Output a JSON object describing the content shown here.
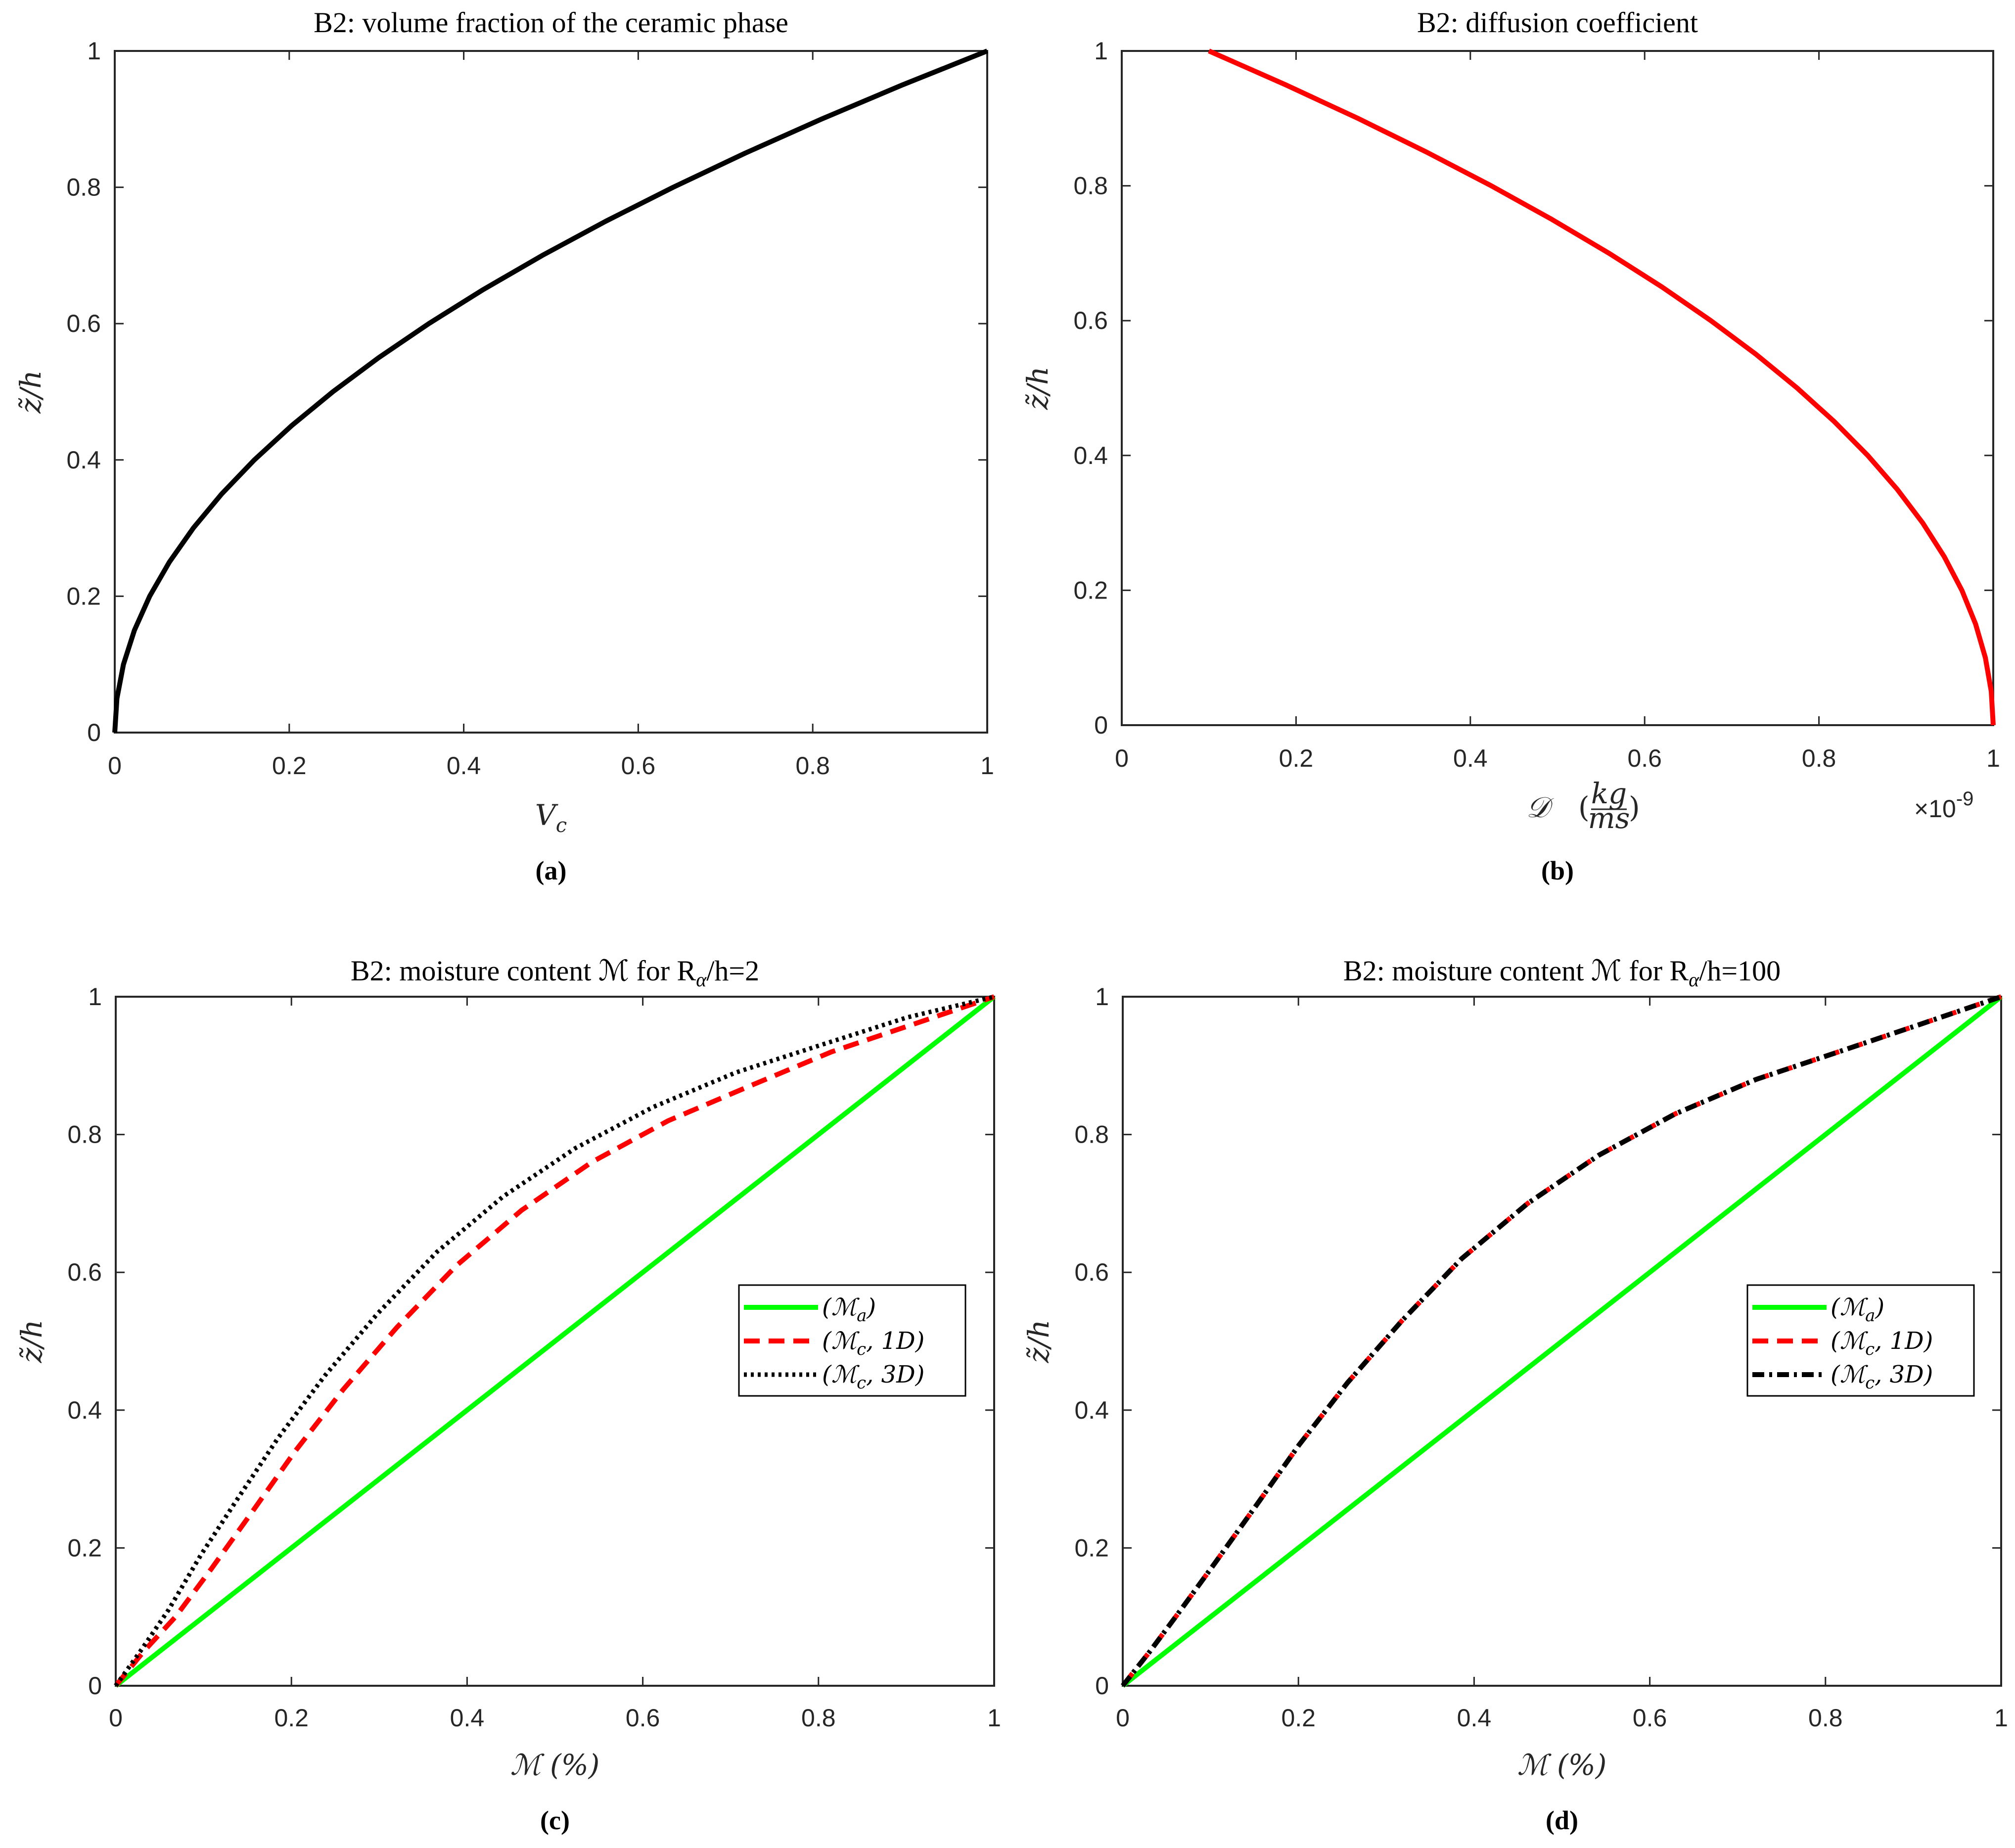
{
  "figure": {
    "colors": {
      "black": "#000000",
      "red": "#ff0000",
      "green": "#00ff00",
      "axis": "#262626"
    },
    "yaxis_label": "z̃/h"
  },
  "chart_data": [
    {
      "id": "a",
      "type": "line",
      "title": "B2:  volume fraction of the ceramic phase",
      "xlabel": "V",
      "xlabel_sub": "c",
      "ylabel": "z̃/h",
      "caption": "(a)",
      "xlim": [
        0,
        1
      ],
      "ylim": [
        0,
        1
      ],
      "xticks": [
        "0",
        "0.2",
        "0.4",
        "0.6",
        "0.8",
        "1"
      ],
      "yticks": [
        "0",
        "0.2",
        "0.4",
        "0.6",
        "0.8",
        "1"
      ],
      "series": [
        {
          "name": "V_c",
          "color": "#000000",
          "style": "solid",
          "x": [
            0,
            0.0025,
            0.01,
            0.0225,
            0.04,
            0.0625,
            0.09,
            0.1225,
            0.16,
            0.2025,
            0.25,
            0.3025,
            0.36,
            0.4225,
            0.49,
            0.5625,
            0.64,
            0.7225,
            0.81,
            0.9025,
            1
          ],
          "y": [
            0,
            0.05,
            0.1,
            0.15,
            0.2,
            0.25,
            0.3,
            0.35,
            0.4,
            0.45,
            0.5,
            0.55,
            0.6,
            0.65,
            0.7,
            0.75,
            0.8,
            0.85,
            0.9,
            0.95,
            1
          ]
        }
      ]
    },
    {
      "id": "b",
      "type": "line",
      "title": "B2:  diffusion coefficient",
      "xlabel": "𝒟",
      "xlabel_frac_num": "kg",
      "xlabel_frac_den": "ms",
      "ylabel": "z̃/h",
      "caption": "(b)",
      "x_exponent": "×10",
      "x_exponent_power": "-9",
      "xlim": [
        0,
        1
      ],
      "ylim": [
        0,
        1
      ],
      "xticks": [
        "0",
        "0.2",
        "0.4",
        "0.6",
        "0.8",
        "1"
      ],
      "yticks": [
        "0",
        "0.2",
        "0.4",
        "0.6",
        "0.8",
        "1"
      ],
      "series": [
        {
          "name": "D",
          "color": "#ff0000",
          "style": "solid",
          "x": [
            1,
            0.99775,
            0.991,
            0.97975,
            0.964,
            0.94375,
            0.919,
            0.88975,
            0.856,
            0.81775,
            0.775,
            0.72775,
            0.676,
            0.61975,
            0.559,
            0.49375,
            0.424,
            0.34975,
            0.271,
            0.18775,
            0.1
          ],
          "y": [
            0,
            0.05,
            0.1,
            0.15,
            0.2,
            0.25,
            0.3,
            0.35,
            0.4,
            0.45,
            0.5,
            0.55,
            0.6,
            0.65,
            0.7,
            0.75,
            0.8,
            0.85,
            0.9,
            0.95,
            1
          ]
        }
      ]
    },
    {
      "id": "c",
      "type": "line",
      "title": "B2:  moisture content ℳ for R",
      "title_sub": "α",
      "title_tail": "/h=2",
      "xlabel": "ℳ (%)",
      "ylabel": "z̃/h",
      "caption": "(c)",
      "xlim": [
        0,
        1
      ],
      "ylim": [
        0,
        1
      ],
      "xticks": [
        "0",
        "0.2",
        "0.4",
        "0.6",
        "0.8",
        "1"
      ],
      "yticks": [
        "0",
        "0.2",
        "0.4",
        "0.6",
        "0.8",
        "1"
      ],
      "legend_position": "center-right",
      "series": [
        {
          "name": "(ℳa)",
          "legend_main": "(ℳ",
          "legend_sub": "a",
          "legend_tail": ")",
          "color": "#00ff00",
          "style": "solid",
          "x": [
            0,
            1
          ],
          "y": [
            0,
            1
          ]
        },
        {
          "name": "(ℳc, 1D)",
          "legend_main": "(ℳ",
          "legend_sub": "c",
          "legend_tail": ", 1D)",
          "color": "#ff0000",
          "style": "dashed",
          "x": [
            0,
            0.032,
            0.068,
            0.109,
            0.154,
            0.204,
            0.259,
            0.32,
            0.388,
            0.462,
            0.542,
            0.629,
            0.721,
            0.815,
            0.908,
            1
          ],
          "y": [
            0,
            0.05,
            0.1,
            0.17,
            0.25,
            0.34,
            0.43,
            0.52,
            0.61,
            0.69,
            0.76,
            0.82,
            0.87,
            0.92,
            0.96,
            1
          ]
        },
        {
          "name": "(ℳc, 3D)",
          "legend_main": "(ℳ",
          "legend_sub": "c",
          "legend_tail": ", 3D)",
          "color": "#000000",
          "style": "dotted",
          "x": [
            0,
            0.028,
            0.06,
            0.097,
            0.138,
            0.185,
            0.238,
            0.298,
            0.366,
            0.441,
            0.523,
            0.612,
            0.706,
            0.803,
            0.901,
            1
          ],
          "y": [
            0,
            0.05,
            0.11,
            0.19,
            0.27,
            0.36,
            0.45,
            0.54,
            0.63,
            0.71,
            0.78,
            0.84,
            0.89,
            0.93,
            0.97,
            1
          ]
        }
      ]
    },
    {
      "id": "d",
      "type": "line",
      "title": "B2:  moisture content ℳ for R",
      "title_sub": "α",
      "title_tail": "/h=100",
      "xlabel": "ℳ (%)",
      "ylabel": "z̃/h",
      "caption": "(d)",
      "xlim": [
        0,
        1
      ],
      "ylim": [
        0,
        1
      ],
      "xticks": [
        "0",
        "0.2",
        "0.4",
        "0.6",
        "0.8",
        "1"
      ],
      "yticks": [
        "0",
        "0.2",
        "0.4",
        "0.6",
        "0.8",
        "1"
      ],
      "legend_position": "center-right",
      "series": [
        {
          "name": "(ℳa)",
          "legend_main": "(ℳ",
          "legend_sub": "a",
          "legend_tail": ")",
          "color": "#00ff00",
          "style": "solid",
          "x": [
            0,
            1
          ],
          "y": [
            0,
            1
          ]
        },
        {
          "name": "(ℳc, 1D)",
          "legend_main": "(ℳ",
          "legend_sub": "c",
          "legend_tail": ", 1D)",
          "color": "#ff0000",
          "style": "dashed",
          "x": [
            0,
            0.031,
            0.066,
            0.106,
            0.151,
            0.201,
            0.256,
            0.318,
            0.386,
            0.461,
            0.542,
            0.629,
            0.721,
            0.815,
            0.908,
            1
          ],
          "y": [
            0,
            0.05,
            0.11,
            0.18,
            0.26,
            0.35,
            0.44,
            0.53,
            0.62,
            0.7,
            0.77,
            0.83,
            0.88,
            0.92,
            0.96,
            1
          ]
        },
        {
          "name": "(ℳc, 3D)",
          "legend_main": "(ℳ",
          "legend_sub": "c",
          "legend_tail": ", 3D)",
          "color": "#000000",
          "style": "dashdot",
          "x": [
            0,
            0.031,
            0.066,
            0.106,
            0.151,
            0.201,
            0.256,
            0.318,
            0.386,
            0.461,
            0.542,
            0.629,
            0.721,
            0.815,
            0.908,
            1
          ],
          "y": [
            0,
            0.05,
            0.11,
            0.18,
            0.26,
            0.35,
            0.44,
            0.53,
            0.62,
            0.7,
            0.77,
            0.83,
            0.88,
            0.92,
            0.96,
            1
          ]
        }
      ]
    }
  ]
}
